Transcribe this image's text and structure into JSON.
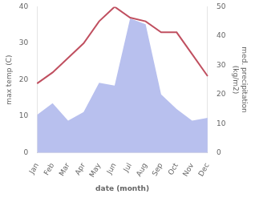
{
  "chart_data": {
    "type": "line",
    "categories": [
      "Jan",
      "Feb",
      "Mar",
      "Apr",
      "May",
      "Jun",
      "Jul",
      "Aug",
      "Sep",
      "Oct",
      "Nov",
      "Dec"
    ],
    "series": [
      {
        "type": "area",
        "axis": "y2",
        "color": "#b8c0ee",
        "values": [
          13,
          17,
          11,
          14,
          24,
          23,
          46,
          44,
          20,
          15,
          11,
          12
        ]
      },
      {
        "type": "line",
        "color": "#c05060",
        "values": [
          19,
          22,
          26,
          30,
          36,
          40,
          37,
          36,
          33,
          33,
          27,
          21
        ]
      }
    ],
    "xlabel": "date (month)",
    "ylabel": "max temp (C)",
    "y2label": "med. precipitation\n(kg/m2)",
    "ylim": [
      0,
      40
    ],
    "yticks": [
      0,
      10,
      20,
      30,
      40
    ],
    "y2lim": [
      0,
      50
    ],
    "y2ticks": [
      0,
      10,
      20,
      30,
      40,
      50
    ],
    "grid": false
  }
}
